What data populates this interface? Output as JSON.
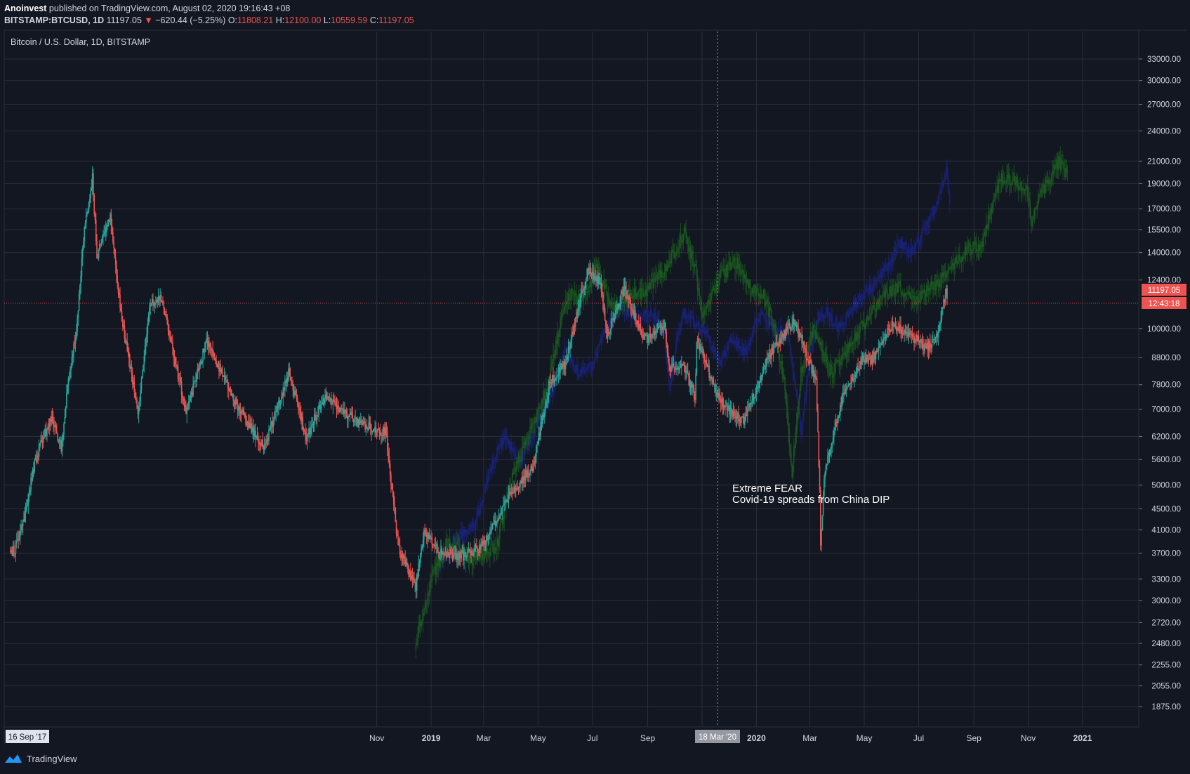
{
  "header": {
    "author": "Anoinvest",
    "published_text": "published on TradingView.com, August 02, 2020 19:16:43 +08",
    "symbol": "BITSTAMP:BTCUSD, 1D",
    "last": "11197.05",
    "change": "−620.44 (−5.25%)",
    "o_label": "O:",
    "o": "11808.21",
    "h_label": "H:",
    "h": "12100.00",
    "l_label": "L:",
    "l": "10559.59",
    "c_label": "C:",
    "c": "11197.05"
  },
  "legend": "Bitcoin / U.S. Dollar, 1D, BITSTAMP",
  "annotation": [
    "Extreme FEAR",
    "Covid-19 spreads from China DIP"
  ],
  "crosshair_date": "18 Mar '20",
  "start_date_badge": "16 Sep '17",
  "price_badge": "11197.05",
  "countdown_badge": "12:43:18",
  "footer": {
    "brand": "TradingView"
  },
  "colors": {
    "background": "#131722",
    "grid": "#2a2e39",
    "up": "#26a69a",
    "down": "#ef5350",
    "overlay_green": "#1b5e20",
    "overlay_blue": "#1a237e",
    "price_line": "#ef5350"
  },
  "chart_data": {
    "type": "candlestick",
    "scale": "log",
    "x_labels": [
      "Nov",
      "2019",
      "Mar",
      "May",
      "Jul",
      "Sep",
      "Nov",
      "2020",
      "Mar",
      "May",
      "Jul",
      "Sep",
      "Nov",
      "2021"
    ],
    "y_ticks": [
      "33000.00",
      "30000.00",
      "27000.00",
      "24000.00",
      "21000.00",
      "19000.00",
      "17000.00",
      "15500.00",
      "14000.00",
      "12400.00",
      "10000.00",
      "8800.00",
      "7800.00",
      "7000.00",
      "6200.00",
      "5600.00",
      "5000.00",
      "4500.00",
      "4100.00",
      "3700.00",
      "3300.00",
      "3000.00",
      "2720.00",
      "2480.00",
      "2255.00",
      "2055.00",
      "1875.00"
    ],
    "ylim": [
      1700,
      35000
    ],
    "current_price": 11197.05,
    "series": [
      {
        "role": "BTCUSD candles",
        "points": [
          [
            "2017-09-16",
            3700
          ],
          [
            "2017-09-22",
            3800
          ],
          [
            "2017-10-01",
            4300
          ],
          [
            "2017-10-12",
            5400
          ],
          [
            "2017-10-20",
            6000
          ],
          [
            "2017-11-01",
            6700
          ],
          [
            "2017-11-12",
            5900
          ],
          [
            "2017-11-20",
            8000
          ],
          [
            "2017-11-29",
            10000
          ],
          [
            "2017-12-08",
            15500
          ],
          [
            "2017-12-17",
            19500
          ],
          [
            "2017-12-22",
            13800
          ],
          [
            "2018-01-06",
            16500
          ],
          [
            "2018-01-17",
            11000
          ],
          [
            "2018-02-06",
            6900
          ],
          [
            "2018-02-20",
            11200
          ],
          [
            "2018-03-05",
            11500
          ],
          [
            "2018-04-01",
            6900
          ],
          [
            "2018-04-24",
            9500
          ],
          [
            "2018-05-28",
            7100
          ],
          [
            "2018-06-28",
            5900
          ],
          [
            "2018-07-25",
            8200
          ],
          [
            "2018-08-14",
            6200
          ],
          [
            "2018-09-04",
            7400
          ],
          [
            "2018-10-10",
            6600
          ],
          [
            "2018-11-01",
            6400
          ],
          [
            "2018-11-12",
            6300
          ],
          [
            "2018-11-14",
            5600
          ],
          [
            "2018-11-20",
            4600
          ],
          [
            "2018-11-25",
            3800
          ],
          [
            "2018-12-07",
            3400
          ],
          [
            "2018-12-15",
            3200
          ],
          [
            "2018-12-24",
            4100
          ],
          [
            "2019-01-10",
            3700
          ],
          [
            "2019-02-08",
            3650
          ],
          [
            "2019-03-01",
            3850
          ],
          [
            "2019-04-02",
            4900
          ],
          [
            "2019-04-25",
            5400
          ],
          [
            "2019-05-14",
            7900
          ],
          [
            "2019-06-01",
            8600
          ],
          [
            "2019-06-26",
            13000
          ],
          [
            "2019-07-10",
            12300
          ],
          [
            "2019-07-17",
            9700
          ],
          [
            "2019-08-06",
            11900
          ],
          [
            "2019-08-29",
            9500
          ],
          [
            "2019-09-20",
            10200
          ],
          [
            "2019-09-25",
            8400
          ],
          [
            "2019-10-10",
            8600
          ],
          [
            "2019-10-24",
            7400
          ],
          [
            "2019-10-26",
            9500
          ],
          [
            "2019-11-22",
            7200
          ],
          [
            "2019-12-18",
            6600
          ],
          [
            "2020-01-14",
            8800
          ],
          [
            "2020-02-12",
            10400
          ],
          [
            "2020-02-27",
            8800
          ],
          [
            "2020-03-08",
            8000
          ],
          [
            "2020-03-12",
            4900
          ],
          [
            "2020-03-13",
            3850
          ],
          [
            "2020-03-18",
            5400
          ],
          [
            "2020-04-06",
            7300
          ],
          [
            "2020-04-30",
            8800
          ],
          [
            "2020-05-10",
            8700
          ],
          [
            "2020-06-01",
            10200
          ],
          [
            "2020-06-22",
            9700
          ],
          [
            "2020-07-10",
            9200
          ],
          [
            "2020-07-22",
            9600
          ],
          [
            "2020-07-28",
            11000
          ],
          [
            "2020-08-01",
            11800
          ],
          [
            "2020-08-02",
            11197
          ]
        ]
      },
      {
        "role": "green overlay",
        "points": [
          [
            "2018-12-15",
            2500
          ],
          [
            "2019-01-01",
            3300
          ],
          [
            "2019-01-20",
            3900
          ],
          [
            "2019-02-15",
            3600
          ],
          [
            "2019-03-15",
            3800
          ],
          [
            "2019-04-01",
            5100
          ],
          [
            "2019-04-20",
            6200
          ],
          [
            "2019-05-10",
            7600
          ],
          [
            "2019-05-25",
            10000
          ],
          [
            "2019-06-05",
            11700
          ],
          [
            "2019-06-20",
            11200
          ],
          [
            "2019-07-05",
            13200
          ],
          [
            "2019-07-25",
            10800
          ],
          [
            "2019-08-10",
            11600
          ],
          [
            "2019-08-30",
            11800
          ],
          [
            "2019-09-20",
            13000
          ],
          [
            "2019-10-05",
            14500
          ],
          [
            "2019-10-12",
            15300
          ],
          [
            "2019-10-25",
            12800
          ],
          [
            "2019-11-01",
            10500
          ],
          [
            "2019-11-20",
            12500
          ],
          [
            "2019-12-10",
            13500
          ],
          [
            "2019-12-25",
            12000
          ],
          [
            "2020-01-10",
            11500
          ],
          [
            "2020-01-20",
            10200
          ],
          [
            "2020-02-01",
            8000
          ],
          [
            "2020-02-10",
            5300
          ],
          [
            "2020-02-20",
            8200
          ],
          [
            "2020-03-05",
            10000
          ],
          [
            "2020-03-15",
            9000
          ],
          [
            "2020-03-25",
            8200
          ],
          [
            "2020-04-10",
            9000
          ],
          [
            "2020-04-25",
            9900
          ],
          [
            "2020-05-10",
            10800
          ],
          [
            "2020-05-25",
            11700
          ],
          [
            "2020-06-10",
            12000
          ],
          [
            "2020-06-25",
            11300
          ],
          [
            "2020-07-10",
            11800
          ],
          [
            "2020-07-25",
            12300
          ],
          [
            "2020-08-10",
            13400
          ],
          [
            "2020-08-25",
            14200
          ],
          [
            "2020-09-10",
            14500
          ],
          [
            "2020-09-20",
            17000
          ],
          [
            "2020-10-01",
            19300
          ],
          [
            "2020-10-15",
            19300
          ],
          [
            "2020-10-30",
            18500
          ],
          [
            "2020-11-05",
            16000
          ],
          [
            "2020-11-15",
            18500
          ],
          [
            "2020-11-25",
            19200
          ],
          [
            "2020-12-05",
            21000
          ],
          [
            "2020-12-15",
            19500
          ]
        ]
      },
      {
        "role": "blue overlay",
        "points": [
          [
            "2019-01-10",
            3500
          ],
          [
            "2019-02-01",
            4000
          ],
          [
            "2019-02-20",
            4200
          ],
          [
            "2019-03-10",
            5500
          ],
          [
            "2019-03-25",
            6200
          ],
          [
            "2019-04-10",
            5500
          ],
          [
            "2019-04-25",
            6300
          ],
          [
            "2019-05-15",
            7500
          ],
          [
            "2019-06-01",
            9100
          ],
          [
            "2019-06-15",
            8200
          ],
          [
            "2019-07-01",
            8500
          ],
          [
            "2019-07-15",
            10000
          ],
          [
            "2019-08-01",
            11000
          ],
          [
            "2019-08-20",
            10500
          ],
          [
            "2019-09-05",
            10800
          ],
          [
            "2019-09-20",
            9800
          ],
          [
            "2019-09-25",
            7700
          ],
          [
            "2019-10-10",
            10800
          ],
          [
            "2019-10-25",
            10200
          ],
          [
            "2019-11-05",
            9800
          ],
          [
            "2019-11-20",
            8600
          ],
          [
            "2019-12-05",
            9500
          ],
          [
            "2019-12-20",
            9000
          ],
          [
            "2020-01-05",
            10800
          ],
          [
            "2020-01-20",
            10000
          ],
          [
            "2020-02-05",
            9800
          ],
          [
            "2020-02-20",
            6300
          ],
          [
            "2020-03-01",
            8900
          ],
          [
            "2020-03-10",
            10500
          ],
          [
            "2020-03-20",
            10800
          ],
          [
            "2020-04-01",
            10000
          ],
          [
            "2020-04-20",
            11200
          ],
          [
            "2020-05-10",
            12000
          ],
          [
            "2020-05-25",
            13000
          ],
          [
            "2020-06-10",
            14600
          ],
          [
            "2020-06-25",
            14000
          ],
          [
            "2020-07-10",
            15800
          ],
          [
            "2020-07-25",
            18000
          ],
          [
            "2020-08-01",
            20500
          ],
          [
            "2020-08-05",
            17500
          ]
        ]
      }
    ]
  }
}
